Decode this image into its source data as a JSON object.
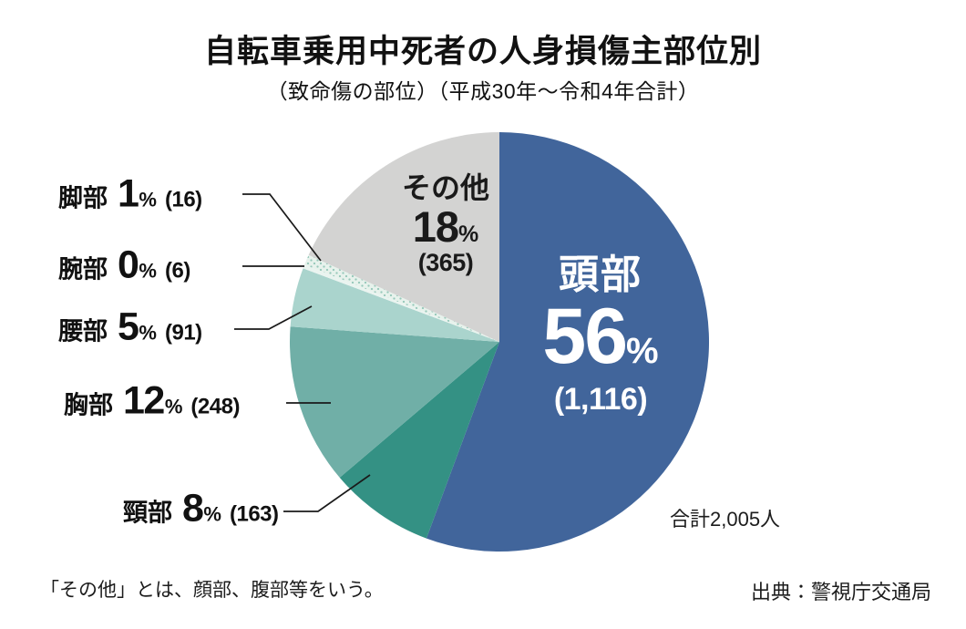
{
  "header": {
    "title": "自転車乗用中死者の人身損傷主部位別",
    "subtitle": "（致命傷の部位）（平成30年〜令和4年合計）"
  },
  "chart_data": {
    "type": "pie",
    "title": "自転車乗用中死者の人身損傷主部位別",
    "subtitle": "（致命傷の部位）（平成30年〜令和4年合計）",
    "direction": "clockwise",
    "start_angle_deg": 0,
    "total": 2005,
    "percent_sign": "%",
    "segments": [
      {
        "label": "頭部",
        "pct": "56",
        "count_label": "(1,116)",
        "value": 1116,
        "color": "#41659b",
        "text_color": "#ffffff"
      },
      {
        "label": "頸部",
        "pct": "8",
        "count_label": "(163)",
        "value": 163,
        "color": "#349184"
      },
      {
        "label": "胸部",
        "pct": "12",
        "count_label": "(248)",
        "value": 248,
        "color": "#70afa7"
      },
      {
        "label": "腰部",
        "pct": "5",
        "count_label": "(91)",
        "value": 91,
        "color": "#aad4cd"
      },
      {
        "label": "腕部",
        "pct": "0",
        "count_label": "(6)",
        "value": 6,
        "color": "#eaf4f0"
      },
      {
        "label": "脚部",
        "pct": "1",
        "count_label": "(16)",
        "value": 16,
        "color": "pattern-dots"
      },
      {
        "label": "その他",
        "pct": "18",
        "count_label": "(365)",
        "value": 365,
        "color": "#d3d3d2"
      }
    ],
    "pattern": {
      "bg": "#e7f2ec",
      "dot": "#96c8ba"
    }
  },
  "annotations": {
    "total": "合計2,005人",
    "footnote": "「その他」とは、顔部、腹部等をいう。",
    "source": "出典：警視庁交通局"
  }
}
